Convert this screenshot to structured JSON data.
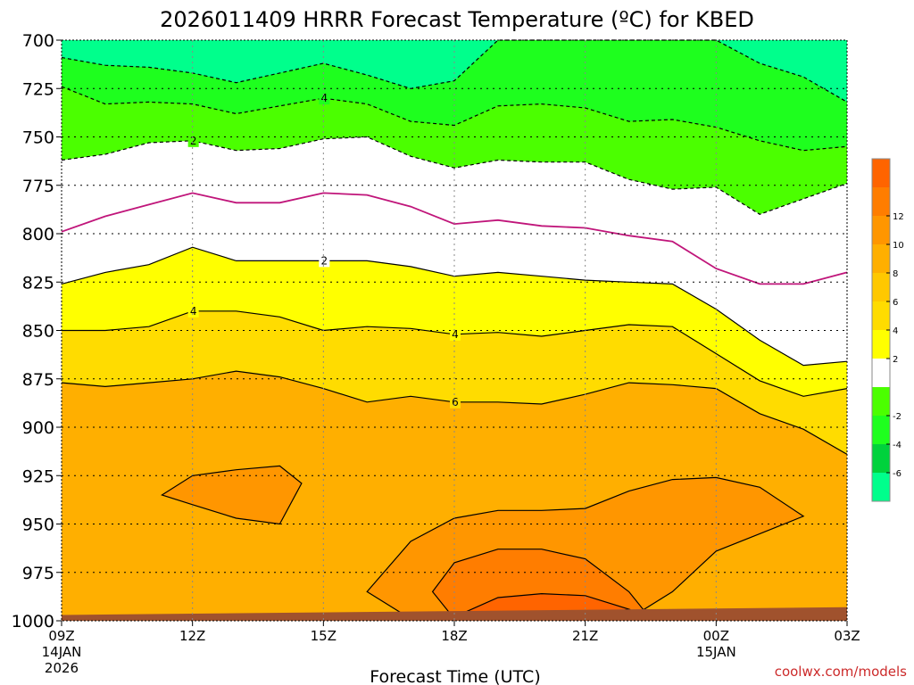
{
  "chart_data": {
    "type": "heatmap",
    "title": "2026011409 HRRR Forecast Temperature (ºC) for KBED",
    "xlabel": "Forecast Time (UTC)",
    "ylabel": "",
    "credit": "coolwx.com/models",
    "x_range_hours": [
      9,
      27
    ],
    "y_range_hpa": [
      700,
      1000
    ],
    "y_ticks": [
      700,
      725,
      750,
      775,
      800,
      825,
      850,
      875,
      900,
      925,
      950,
      975,
      1000
    ],
    "x_ticks": [
      {
        "hour": 9,
        "label": "09Z",
        "sub1": "14JAN",
        "sub2": "2026"
      },
      {
        "hour": 12,
        "label": "12Z",
        "sub1": "",
        "sub2": ""
      },
      {
        "hour": 15,
        "label": "15Z",
        "sub1": "",
        "sub2": ""
      },
      {
        "hour": 18,
        "label": "18Z",
        "sub1": "",
        "sub2": ""
      },
      {
        "hour": 21,
        "label": "21Z",
        "sub1": "",
        "sub2": ""
      },
      {
        "hour": 24,
        "label": "00Z",
        "sub1": "15JAN",
        "sub2": ""
      },
      {
        "hour": 27,
        "label": "03Z",
        "sub1": "",
        "sub2": ""
      }
    ],
    "grid": true,
    "colorbar": {
      "placement": "right",
      "bins": [
        {
          "color": "#00ff8c"
        },
        {
          "color": "#00d23c"
        },
        {
          "color": "#1eff1e"
        },
        {
          "color": "#4bff00"
        },
        {
          "color": "#ffffff"
        },
        {
          "color": "#ffff00"
        },
        {
          "color": "#ffdc00"
        },
        {
          "color": "#ffc800"
        },
        {
          "color": "#ffaf00"
        },
        {
          "color": "#ff9600"
        },
        {
          "color": "#ff7d00"
        },
        {
          "color": "#ff6400"
        }
      ],
      "labels": [
        "-6",
        "-4",
        "-2",
        "2",
        "4",
        "6",
        "8",
        "10",
        "12"
      ]
    },
    "contours": [
      {
        "value": -4,
        "style": "dashed",
        "color": "#000000",
        "x": [
          9,
          10,
          11,
          12,
          13,
          14,
          15,
          16,
          17,
          18,
          19,
          20,
          21,
          22,
          23,
          24,
          25,
          26,
          27
        ],
        "p": [
          709,
          713,
          714,
          717,
          722,
          717,
          712,
          718,
          725,
          721,
          700,
          700,
          700,
          700,
          700,
          700,
          712,
          719,
          732
        ]
      },
      {
        "value": -4,
        "style": "dashed",
        "color": "#000000",
        "label_at": 15,
        "x": [
          9,
          10,
          11,
          12,
          13,
          14,
          15,
          16,
          17,
          18,
          19,
          20,
          21,
          22,
          23,
          24,
          25,
          26,
          27
        ],
        "p": [
          724,
          733,
          732,
          733,
          738,
          734,
          730,
          733,
          742,
          744,
          734,
          733,
          735,
          742,
          741,
          745,
          752,
          757,
          755
        ]
      },
      {
        "value": -2,
        "style": "dashed",
        "color": "#000000",
        "label_at": 12,
        "x": [
          9,
          10,
          11,
          12,
          13,
          14,
          15,
          16,
          17,
          18,
          19,
          20,
          21,
          22,
          23,
          24,
          25,
          26,
          27
        ],
        "p": [
          762,
          759,
          753,
          752,
          757,
          756,
          751,
          750,
          760,
          766,
          762,
          763,
          763,
          772,
          777,
          776,
          790,
          782,
          774
        ]
      },
      {
        "value": 0,
        "style": "solid",
        "color": "#c0157a",
        "x": [
          9,
          10,
          11,
          12,
          13,
          14,
          15,
          16,
          17,
          18,
          19,
          20,
          21,
          22,
          23,
          24,
          25,
          26,
          27
        ],
        "p": [
          799,
          791,
          785,
          779,
          784,
          784,
          779,
          780,
          786,
          795,
          793,
          796,
          797,
          801,
          804,
          818,
          826,
          826,
          820
        ]
      },
      {
        "value": 2,
        "style": "solid",
        "color": "#000000",
        "label_at": 15,
        "x": [
          9,
          10,
          11,
          12,
          13,
          14,
          15,
          16,
          17,
          18,
          19,
          20,
          21,
          22,
          23,
          24,
          25,
          26,
          27
        ],
        "p": [
          826,
          820,
          816,
          807,
          814,
          814,
          814,
          814,
          817,
          822,
          820,
          822,
          824,
          825,
          826,
          839,
          855,
          868,
          866
        ]
      },
      {
        "value": 4,
        "style": "solid",
        "color": "#000000",
        "label_at": 12,
        "label_at2": 18,
        "x": [
          9,
          10,
          11,
          12,
          13,
          14,
          15,
          16,
          17,
          18,
          19,
          20,
          21,
          22,
          23,
          24,
          25,
          26,
          27
        ],
        "p": [
          850,
          850,
          848,
          840,
          840,
          843,
          850,
          848,
          849,
          852,
          851,
          853,
          850,
          847,
          848,
          862,
          876,
          884,
          880
        ]
      },
      {
        "value": 6,
        "style": "solid",
        "color": "#000000",
        "label_at": 18,
        "x": [
          9,
          10,
          11,
          12,
          13,
          14,
          15,
          16,
          17,
          18,
          19,
          20,
          21,
          22,
          23,
          24,
          25,
          26,
          27
        ],
        "p": [
          877,
          879,
          877,
          875,
          871,
          874,
          880,
          887,
          884,
          887,
          887,
          888,
          883,
          877,
          878,
          880,
          893,
          901,
          914
        ]
      }
    ],
    "cells": [
      {
        "value": 8,
        "x": [
          11.3,
          12,
          13,
          14,
          14.5,
          14,
          13,
          12,
          11.3
        ],
        "p": [
          935,
          925,
          922,
          920,
          929,
          950,
          947,
          940,
          935
        ]
      },
      {
        "value": 8,
        "x": [
          16,
          17,
          18,
          19,
          20,
          21,
          22,
          23,
          24,
          25,
          26,
          25,
          24,
          23,
          22,
          21,
          20,
          19,
          18,
          17,
          16
        ],
        "p": [
          985,
          959,
          947,
          943,
          943,
          942,
          933,
          927,
          926,
          931,
          946,
          955,
          964,
          985,
          999,
          999,
          999,
          999,
          999,
          999,
          985
        ]
      },
      {
        "value": 10,
        "x": [
          17.5,
          18,
          19,
          20,
          21,
          22,
          22.5,
          22,
          21,
          20,
          19,
          18,
          17.5
        ],
        "p": [
          985,
          970,
          963,
          963,
          968,
          985,
          999,
          999,
          999,
          999,
          999,
          999,
          985
        ]
      },
      {
        "value": 12,
        "x": [
          18,
          19,
          20,
          21,
          22,
          21,
          20,
          19,
          18
        ],
        "p": [
          998,
          988,
          986,
          987,
          994,
          999,
          999,
          999,
          998
        ]
      }
    ],
    "surface": {
      "color": "#a0522d",
      "p_start": 997,
      "p_end": 993
    }
  }
}
